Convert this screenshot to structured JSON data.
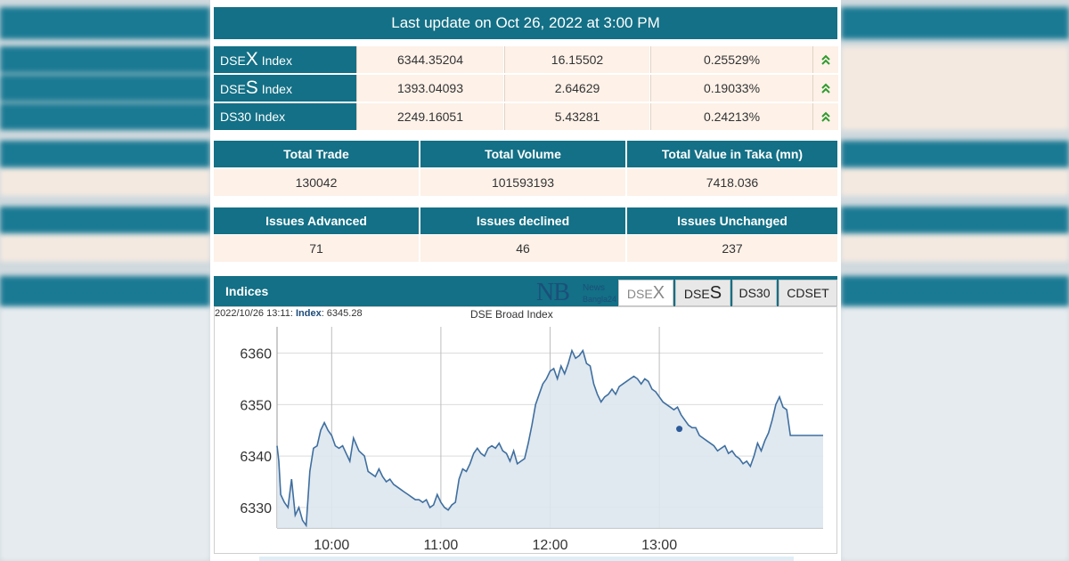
{
  "last_update": "Last update on Oct 26, 2022 at 3:00 PM",
  "indices": [
    {
      "prefix": "DSE",
      "letter": "X",
      "suffix": " Index",
      "value": "6344.35204",
      "change": "16.15502",
      "percent": "0.25529%",
      "icon": "double-chevron-up-icon"
    },
    {
      "prefix": "DSE",
      "letter": "S",
      "suffix": " Index",
      "value": "1393.04093",
      "change": "2.64629",
      "percent": "0.19033%",
      "icon": "double-chevron-up-icon"
    },
    {
      "prefix": "DS30 Index",
      "letter": "",
      "suffix": "",
      "value": "2249.16051",
      "change": "5.43281",
      "percent": "0.24213%",
      "icon": "double-chevron-up-icon"
    }
  ],
  "trade_stats": {
    "headers": [
      "Total Trade",
      "Total Volume",
      "Total Value in Taka (mn)"
    ],
    "values": [
      "130042",
      "101593193",
      "7418.036"
    ]
  },
  "issue_stats": {
    "headers": [
      "Issues Advanced",
      "Issues declined",
      "Issues Unchanged"
    ],
    "values": [
      "71",
      "46",
      "237"
    ]
  },
  "indices_panel": {
    "title": "Indices",
    "logo": {
      "mark": "NB",
      "line1": "News",
      "line2": "Bangla24"
    },
    "tabs": [
      {
        "prefix": "DSE",
        "letter": "X",
        "active": true
      },
      {
        "prefix": "DSE",
        "letter": "S",
        "active": false
      },
      {
        "prefix": "DS30",
        "letter": "",
        "active": false
      },
      {
        "prefix": "CDSET",
        "letter": "",
        "active": false
      }
    ]
  },
  "chart_meta": {
    "timestamp": "2022/10/26 13:11:",
    "index_label": "Index",
    "index_value": ": 6345.28"
  },
  "colors": {
    "header": "#137086",
    "cell_bg": "#fdf1e8",
    "up_arrow": "#2e9b2e",
    "line": "#3f6f9f",
    "area": "#dde5ee"
  },
  "chart_data": {
    "type": "area",
    "title": "DSE Broad Index",
    "xlabel": "",
    "ylabel": "",
    "x_ticks": [
      "10:00",
      "11:00",
      "12:00",
      "13:00"
    ],
    "y_ticks": [
      6330,
      6340,
      6350,
      6360
    ],
    "ylim": [
      6326,
      6362
    ],
    "x_range_minutes": [
      570,
      870
    ],
    "grid": true,
    "marker": {
      "x": 791,
      "y": 6345.28
    },
    "series": [
      {
        "x": [
          570,
          571,
          572,
          574,
          576,
          578,
          580,
          582,
          584,
          586,
          588,
          590,
          592,
          594,
          596,
          598,
          600,
          602,
          604,
          606,
          608,
          610,
          612,
          615,
          618,
          620,
          622,
          624,
          626,
          628,
          630,
          632,
          634,
          636,
          638,
          640,
          642,
          644,
          646,
          648,
          650,
          652,
          654,
          656,
          658,
          660,
          662,
          664,
          666,
          668,
          670,
          672,
          674,
          676,
          678,
          680,
          682,
          684,
          686,
          688,
          690,
          692,
          694,
          696,
          698,
          700,
          702,
          704,
          706,
          708,
          710,
          712,
          714,
          716,
          718,
          720,
          722,
          724,
          726,
          728,
          730,
          732,
          734,
          736,
          738,
          740,
          742,
          744,
          746,
          748,
          750,
          752,
          754,
          756,
          758,
          760,
          762,
          764,
          766,
          768,
          770,
          772,
          774,
          776,
          778,
          780,
          782,
          784,
          786,
          788,
          790,
          792,
          794,
          796,
          798,
          800,
          802,
          804,
          806,
          808,
          810,
          812,
          814,
          816,
          818,
          820,
          822,
          824,
          826,
          828,
          830,
          832,
          834,
          836,
          838,
          840,
          842,
          844,
          846,
          848,
          850,
          852,
          854,
          856,
          858,
          860,
          862,
          864,
          866,
          868,
          870
        ],
        "y": [
          6342.0,
          6339.0,
          6332.5,
          6331.0,
          6330.0,
          6335.5,
          6328.5,
          6330.0,
          6327.5,
          6326.5,
          6337.0,
          6341.5,
          6342.0,
          6345.0,
          6346.5,
          6345.0,
          6344.0,
          6342.0,
          6341.5,
          6342.0,
          6340.5,
          6339.0,
          6343.5,
          6341.0,
          6340.0,
          6337.0,
          6336.5,
          6336.0,
          6337.5,
          6336.0,
          6335.0,
          6335.5,
          6334.5,
          6334.0,
          6333.5,
          6333.0,
          6332.5,
          6332.0,
          6331.5,
          6331.5,
          6331.0,
          6331.5,
          6330.0,
          6330.5,
          6332.5,
          6331.0,
          6330.0,
          6329.5,
          6330.5,
          6331.0,
          6335.5,
          6337.5,
          6337.0,
          6338.5,
          6340.5,
          6341.5,
          6340.5,
          6340.0,
          6341.5,
          6342.0,
          6341.5,
          6342.5,
          6341.0,
          6340.5,
          6339.0,
          6341.0,
          6338.5,
          6339.0,
          6339.5,
          6342.5,
          6346.0,
          6350.0,
          6352.0,
          6354.0,
          6355.0,
          6356.5,
          6357.0,
          6355.0,
          6357.5,
          6356.0,
          6358.0,
          6360.5,
          6359.0,
          6359.5,
          6360.5,
          6358.0,
          6357.5,
          6354.0,
          6352.0,
          6350.5,
          6351.5,
          6352.0,
          6353.0,
          6352.0,
          6353.5,
          6354.0,
          6354.5,
          6355.0,
          6355.5,
          6355.0,
          6354.0,
          6355.0,
          6354.5,
          6353.0,
          6352.5,
          6351.5,
          6350.5,
          6350.0,
          6349.5,
          6349.0,
          6349.5,
          6348.0,
          6347.0,
          6346.0,
          6345.5,
          6345.5,
          6344.0,
          6343.5,
          6343.0,
          6342.5,
          6342.0,
          6341.0,
          6341.5,
          6342.0,
          6340.5,
          6341.0,
          6340.0,
          6339.5,
          6338.5,
          6339.0,
          6338.0,
          6340.0,
          6342.5,
          6341.0,
          6343.0,
          6344.5,
          6347.0,
          6350.0,
          6351.5,
          6349.5,
          6349.0,
          6344.0,
          6344.0,
          6344.0,
          6344.0,
          6344.0,
          6344.0,
          6344.0,
          6344.0,
          6344.0,
          6344.0
        ]
      }
    ]
  }
}
